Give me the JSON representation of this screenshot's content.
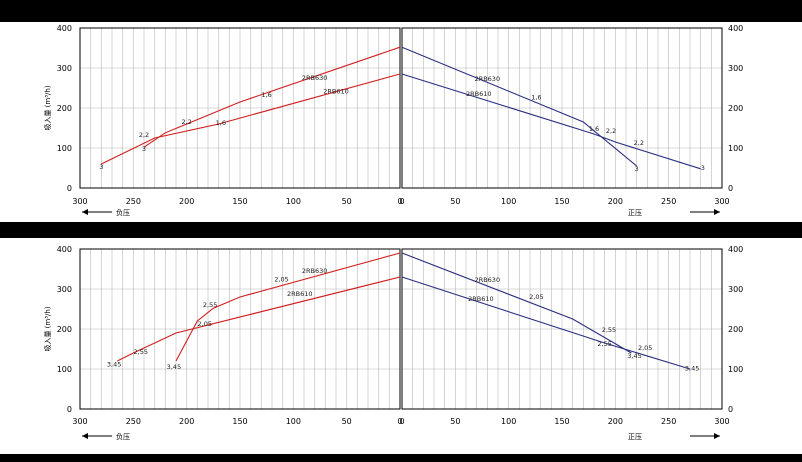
{
  "colors": {
    "suction": "#d11f1f",
    "pressure": "#2b2f7f",
    "grid": "#b8b8b8",
    "axis": "#000000"
  },
  "chart_data": [
    {
      "type": "line",
      "ylabel": "吸入量 (m³/h)",
      "yticks": [
        0,
        100,
        200,
        300,
        400
      ],
      "ylim": [
        0,
        400
      ],
      "left": {
        "xlim": [
          300,
          0
        ],
        "xticks": [
          300,
          250,
          200,
          150,
          100,
          50,
          0
        ],
        "arrow_label": "负压",
        "series": [
          {
            "name": "2RB630",
            "points": [
              [
                240,
                102
              ],
              [
                220,
                138
              ],
              [
                150,
                215
              ],
              [
                0,
                352
              ]
            ]
          },
          {
            "name": "2RB610",
            "points": [
              [
                280,
                60
              ],
              [
                230,
                125
              ],
              [
                170,
                160
              ],
              [
                0,
                285
              ]
            ]
          }
        ],
        "annotations": [
          {
            "text": "3",
            "x": 280,
            "y": 48
          },
          {
            "text": "3",
            "x": 240,
            "y": 92
          },
          {
            "text": "2,2",
            "x": 240,
            "y": 128
          },
          {
            "text": "2,2",
            "x": 200,
            "y": 160
          },
          {
            "text": "1,6",
            "x": 125,
            "y": 228
          },
          {
            "text": "1,6",
            "x": 168,
            "y": 157
          },
          {
            "text": "2RB630",
            "x": 80,
            "y": 270
          },
          {
            "text": "2RB610",
            "x": 60,
            "y": 236
          }
        ]
      },
      "right": {
        "xlim": [
          0,
          300
        ],
        "xticks": [
          0,
          50,
          100,
          150,
          200,
          250,
          300
        ],
        "arrow_label": "正压",
        "series": [
          {
            "name": "2RB630",
            "points": [
              [
                0,
                352
              ],
              [
                170,
                165
              ],
              [
                220,
                55
              ]
            ]
          },
          {
            "name": "2RB610",
            "points": [
              [
                0,
                285
              ],
              [
                180,
                135
              ],
              [
                200,
                115
              ],
              [
                280,
                48
              ]
            ]
          }
        ],
        "annotations": [
          {
            "text": "1,6",
            "x": 126,
            "y": 221
          },
          {
            "text": "1,6",
            "x": 180,
            "y": 143
          },
          {
            "text": "2,2",
            "x": 196,
            "y": 137
          },
          {
            "text": "2,2",
            "x": 222,
            "y": 108
          },
          {
            "text": "3",
            "x": 220,
            "y": 42
          },
          {
            "text": "3",
            "x": 282,
            "y": 45
          },
          {
            "text": "2RB630",
            "x": 80,
            "y": 268
          },
          {
            "text": "2RB610",
            "x": 72,
            "y": 230
          }
        ]
      }
    },
    {
      "type": "line",
      "ylabel": "吸入量 (m³/h)",
      "yticks": [
        0,
        100,
        200,
        300,
        400
      ],
      "ylim": [
        0,
        400
      ],
      "left": {
        "xlim": [
          300,
          0
        ],
        "xticks": [
          300,
          250,
          200,
          150,
          100,
          50,
          0
        ],
        "arrow_label": "负压",
        "series": [
          {
            "name": "2RB630",
            "points": [
              [
                210,
                120
              ],
              [
                190,
                220
              ],
              [
                175,
                252
              ],
              [
                150,
                280
              ],
              [
                0,
                390
              ]
            ]
          },
          {
            "name": "2RB610",
            "points": [
              [
                265,
                120
              ],
              [
                250,
                140
              ],
              [
                210,
                190
              ],
              [
                0,
                330
              ]
            ]
          }
        ],
        "annotations": [
          {
            "text": "3,45",
            "x": 268,
            "y": 106
          },
          {
            "text": "2,55",
            "x": 243,
            "y": 138
          },
          {
            "text": "3,45",
            "x": 212,
            "y": 100
          },
          {
            "text": "2,55",
            "x": 178,
            "y": 255
          },
          {
            "text": "2,05",
            "x": 183,
            "y": 208
          },
          {
            "text": "2,05",
            "x": 111,
            "y": 319
          },
          {
            "text": "2RB630",
            "x": 80,
            "y": 340
          },
          {
            "text": "2RB610",
            "x": 94,
            "y": 282
          }
        ]
      },
      "right": {
        "xlim": [
          0,
          300
        ],
        "xticks": [
          0,
          50,
          100,
          150,
          200,
          250,
          300
        ],
        "arrow_label": "正压",
        "series": [
          {
            "name": "2RB630",
            "points": [
              [
                0,
                390
              ],
              [
                160,
                225
              ],
              [
                215,
                140
              ]
            ]
          },
          {
            "name": "2RB610",
            "points": [
              [
                0,
                330
              ],
              [
                190,
                165
              ],
              [
                270,
                100
              ]
            ]
          }
        ],
        "annotations": [
          {
            "text": "2,05",
            "x": 126,
            "y": 275
          },
          {
            "text": "2,55",
            "x": 194,
            "y": 192
          },
          {
            "text": "2,55",
            "x": 190,
            "y": 158
          },
          {
            "text": "3,45",
            "x": 218,
            "y": 128
          },
          {
            "text": "2,05",
            "x": 228,
            "y": 148
          },
          {
            "text": "3,45",
            "x": 272,
            "y": 96
          },
          {
            "text": "2RB630",
            "x": 80,
            "y": 318
          },
          {
            "text": "2RB610",
            "x": 74,
            "y": 270
          }
        ]
      }
    }
  ]
}
